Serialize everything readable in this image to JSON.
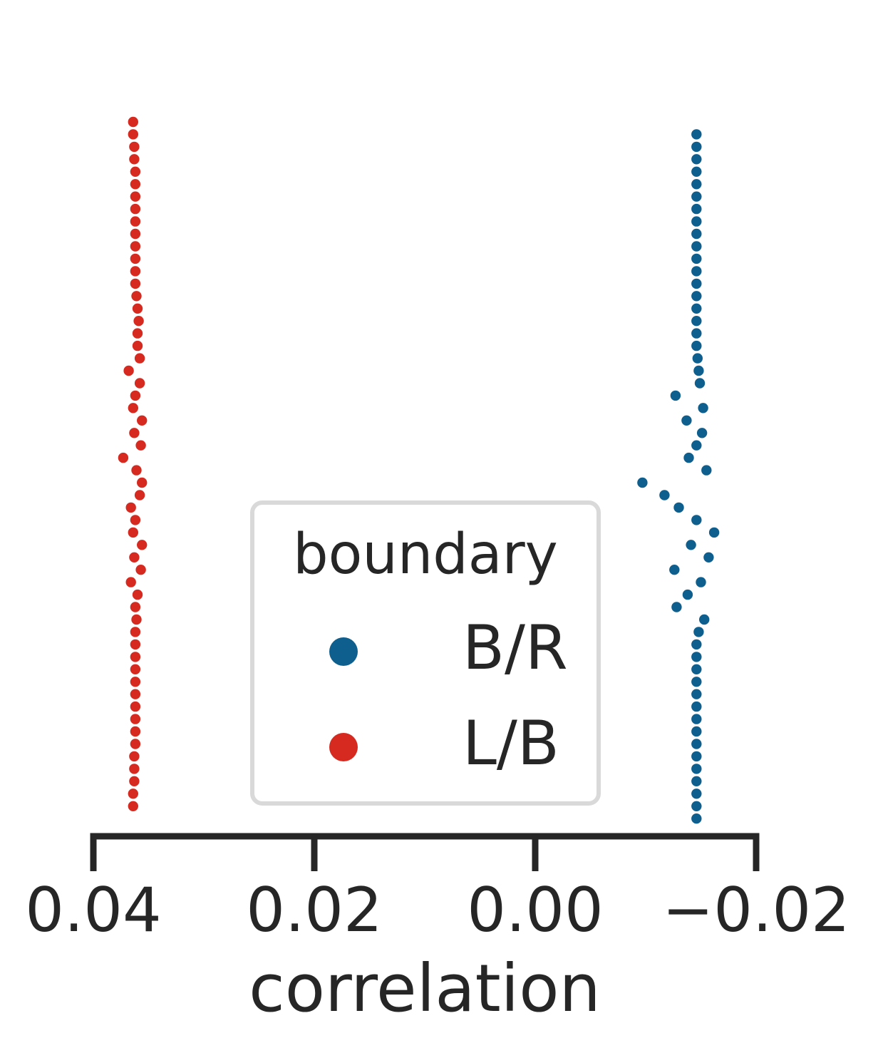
{
  "chart_data": {
    "type": "scatter",
    "subtype": "swarm",
    "orientation": "horizontal",
    "x_axis_inverted": true,
    "xlabel": "correlation",
    "x_ticks": [
      0.04,
      0.02,
      0.0,
      -0.02
    ],
    "x_tick_labels": [
      "0.04",
      "0.02",
      "0.00",
      "−0.02"
    ],
    "xlim": [
      0.04,
      -0.02
    ],
    "grid": false,
    "legend": {
      "title": "boundary",
      "placement": "lower-center"
    },
    "series": [
      {
        "name": "L/B",
        "color": "#d62a20",
        "center_value": 0.0364,
        "points": [
          0.0364,
          0.0364,
          0.0363,
          0.0363,
          0.0362,
          0.0362,
          0.0362,
          0.0362,
          0.0362,
          0.0362,
          0.0362,
          0.0362,
          0.0362,
          0.0362,
          0.0361,
          0.036,
          0.0359,
          0.036,
          0.036,
          0.0358,
          0.0368,
          0.0358,
          0.0362,
          0.0364,
          0.0356,
          0.0363,
          0.0357,
          0.0373,
          0.0361,
          0.0356,
          0.0358,
          0.0366,
          0.0362,
          0.0364,
          0.0356,
          0.0363,
          0.0357,
          0.0366,
          0.036,
          0.0362,
          0.0361,
          0.0362,
          0.0362,
          0.0362,
          0.0362,
          0.0362,
          0.0362,
          0.0362,
          0.0362,
          0.0362,
          0.0362,
          0.0363,
          0.0363,
          0.0363,
          0.0364,
          0.0364
        ]
      },
      {
        "name": "B/R",
        "color": "#0e5e8e",
        "center_value": -0.0146,
        "points": [
          -0.0146,
          -0.0146,
          -0.0146,
          -0.0146,
          -0.0146,
          -0.0146,
          -0.0146,
          -0.0146,
          -0.0146,
          -0.0146,
          -0.0146,
          -0.0146,
          -0.0146,
          -0.0146,
          -0.0146,
          -0.0146,
          -0.0146,
          -0.0146,
          -0.0147,
          -0.0148,
          -0.0149,
          -0.0127,
          -0.0152,
          -0.0137,
          -0.0151,
          -0.0146,
          -0.0139,
          -0.0155,
          -0.0097,
          -0.0117,
          -0.013,
          -0.0146,
          -0.0162,
          -0.0141,
          -0.0157,
          -0.0126,
          -0.015,
          -0.0138,
          -0.0128,
          -0.0153,
          -0.0148,
          -0.0146,
          -0.0146,
          -0.0146,
          -0.0146,
          -0.0146,
          -0.0146,
          -0.0146,
          -0.0146,
          -0.0146,
          -0.0146,
          -0.0146,
          -0.0146,
          -0.0146,
          -0.0146,
          -0.0146
        ]
      }
    ]
  },
  "legend_items": [
    {
      "label": "B/R",
      "color": "#0e5e8e"
    },
    {
      "label": "L/B",
      "color": "#d62a20"
    }
  ]
}
